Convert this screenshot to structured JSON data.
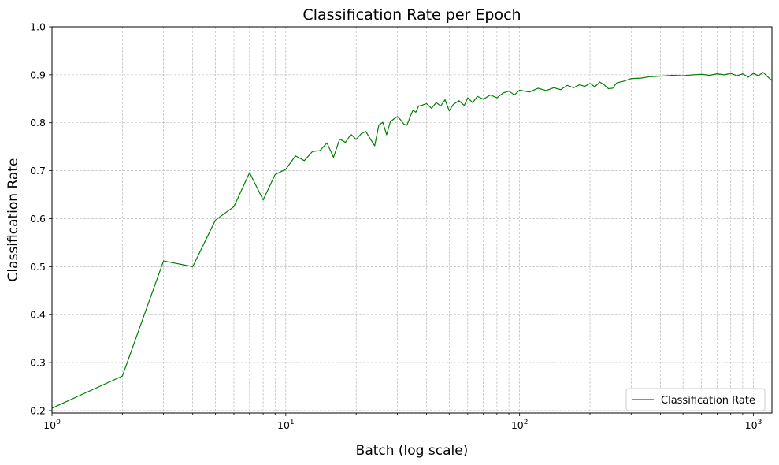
{
  "chart_data": {
    "type": "line",
    "title": "Classification Rate per Epoch",
    "xlabel": "Batch (log scale)",
    "ylabel": "Classification Rate",
    "x_scale": "log",
    "xlim": [
      1,
      1200
    ],
    "ylim": [
      0.195,
      1.0
    ],
    "grid": true,
    "legend_position": "bottom-right",
    "line_color": "#008000",
    "x_ticks": [
      {
        "value": 1,
        "base": "10",
        "exp": "0"
      },
      {
        "value": 10,
        "base": "10",
        "exp": "1"
      },
      {
        "value": 100,
        "base": "10",
        "exp": "2"
      },
      {
        "value": 1000,
        "base": "10",
        "exp": "3"
      }
    ],
    "y_ticks": [
      "0.2",
      "0.3",
      "0.4",
      "0.5",
      "0.6",
      "0.7",
      "0.8",
      "0.9",
      "1.0"
    ],
    "series": [
      {
        "name": "Classification Rate",
        "x": [
          1,
          2,
          3,
          4,
          5,
          6,
          7,
          8,
          9,
          10,
          11,
          12,
          13,
          14,
          15,
          16,
          17,
          18,
          19,
          20,
          21,
          22,
          23,
          24,
          25,
          26,
          27,
          28,
          29,
          30,
          31,
          32,
          33,
          34,
          35,
          36,
          37,
          38,
          40,
          42,
          44,
          46,
          48,
          50,
          52,
          55,
          58,
          60,
          63,
          66,
          70,
          75,
          80,
          85,
          90,
          95,
          100,
          110,
          120,
          130,
          140,
          150,
          160,
          170,
          180,
          190,
          200,
          210,
          220,
          230,
          240,
          250,
          260,
          280,
          300,
          330,
          360,
          400,
          450,
          500,
          550,
          600,
          650,
          700,
          750,
          800,
          850,
          900,
          950,
          1000,
          1050,
          1100,
          1150,
          1200
        ],
        "y": [
          0.205,
          0.272,
          0.512,
          0.5,
          0.597,
          0.625,
          0.696,
          0.639,
          0.692,
          0.703,
          0.731,
          0.721,
          0.74,
          0.742,
          0.758,
          0.728,
          0.766,
          0.759,
          0.776,
          0.765,
          0.777,
          0.782,
          0.766,
          0.752,
          0.795,
          0.801,
          0.775,
          0.802,
          0.808,
          0.813,
          0.806,
          0.797,
          0.795,
          0.812,
          0.826,
          0.822,
          0.835,
          0.836,
          0.84,
          0.83,
          0.842,
          0.835,
          0.848,
          0.825,
          0.838,
          0.846,
          0.836,
          0.852,
          0.842,
          0.855,
          0.849,
          0.858,
          0.852,
          0.862,
          0.866,
          0.858,
          0.868,
          0.864,
          0.872,
          0.867,
          0.873,
          0.869,
          0.878,
          0.873,
          0.879,
          0.876,
          0.882,
          0.875,
          0.885,
          0.879,
          0.871,
          0.872,
          0.883,
          0.887,
          0.892,
          0.893,
          0.896,
          0.897,
          0.899,
          0.898,
          0.9,
          0.901,
          0.899,
          0.902,
          0.9,
          0.903,
          0.898,
          0.902,
          0.895,
          0.903,
          0.898,
          0.905,
          0.896,
          0.888
        ]
      }
    ]
  }
}
